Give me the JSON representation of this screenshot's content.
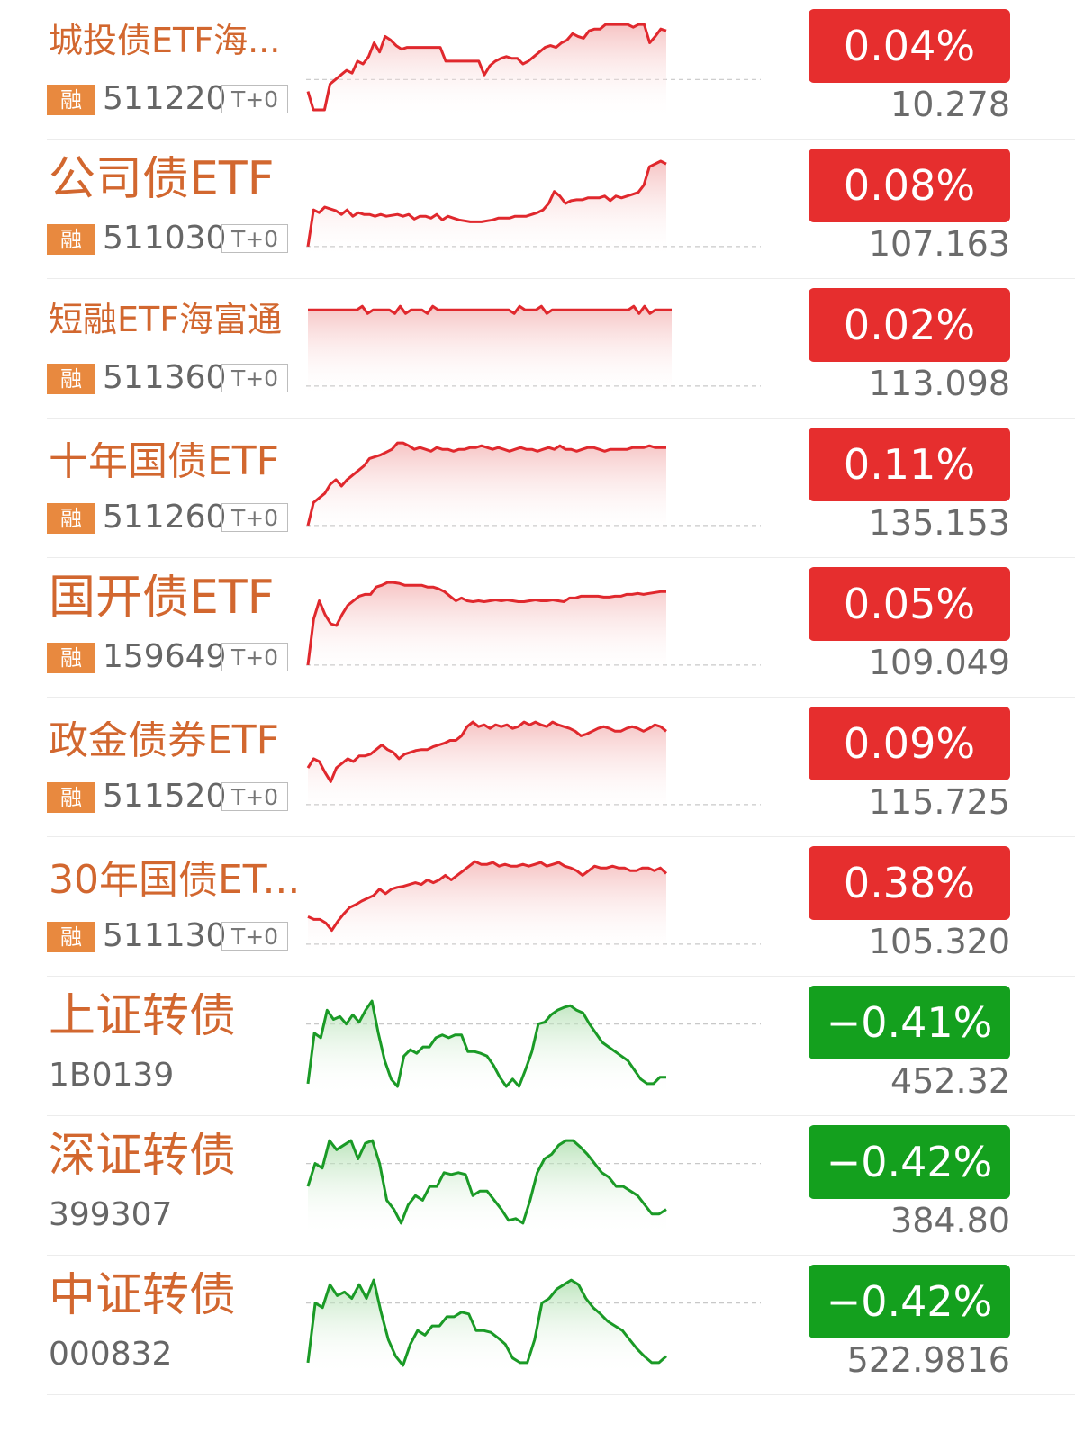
{
  "items": [
    {
      "name": "城投债ETF海...",
      "code": "511220",
      "badge": "融",
      "tplus": "T+0",
      "change": "0.04%",
      "price": "10.278",
      "dir": "up",
      "spark": [
        0.78,
        0.98,
        0.98,
        0.98,
        0.7,
        0.65,
        0.6,
        0.55,
        0.58,
        0.45,
        0.48,
        0.4,
        0.25,
        0.35,
        0.18,
        0.22,
        0.28,
        0.32,
        0.3,
        0.3,
        0.3,
        0.3,
        0.3,
        0.3,
        0.3,
        0.45,
        0.45,
        0.45,
        0.45,
        0.45,
        0.45,
        0.45,
        0.6,
        0.5,
        0.45,
        0.42,
        0.4,
        0.42,
        0.42,
        0.48,
        0.45,
        0.4,
        0.35,
        0.3,
        0.28,
        0.3,
        0.25,
        0.22,
        0.15,
        0.18,
        0.2,
        0.12,
        0.1,
        0.1,
        0.05,
        0.05,
        0.05,
        0.05,
        0.05,
        0.08,
        0.05,
        0.05,
        0.25,
        0.18,
        0.1,
        0.12
      ],
      "ref": 0.65
    },
    {
      "name": "公司债ETF",
      "code": "511030",
      "badge": "融",
      "tplus": "T+0",
      "change": "0.08%",
      "price": "107.163",
      "dir": "up",
      "spark": [
        0.95,
        0.55,
        0.58,
        0.52,
        0.54,
        0.56,
        0.6,
        0.55,
        0.62,
        0.58,
        0.6,
        0.6,
        0.62,
        0.6,
        0.62,
        0.61,
        0.6,
        0.62,
        0.6,
        0.65,
        0.62,
        0.62,
        0.64,
        0.6,
        0.66,
        0.62,
        0.64,
        0.66,
        0.67,
        0.68,
        0.68,
        0.68,
        0.67,
        0.66,
        0.64,
        0.64,
        0.64,
        0.62,
        0.62,
        0.62,
        0.6,
        0.58,
        0.55,
        0.48,
        0.35,
        0.4,
        0.48,
        0.45,
        0.44,
        0.44,
        0.42,
        0.42,
        0.42,
        0.4,
        0.45,
        0.4,
        0.42,
        0.4,
        0.38,
        0.36,
        0.28,
        0.08,
        0.05,
        0.02,
        0.05
      ],
      "ref": 0.95
    },
    {
      "name": "短融ETF海富通",
      "code": "511360",
      "badge": "融",
      "tplus": "T+0",
      "change": "0.02%",
      "price": "113.098",
      "dir": "up",
      "spark": [
        0.12,
        0.12,
        0.12,
        0.12,
        0.12,
        0.12,
        0.12,
        0.12,
        0.12,
        0.12,
        0.08,
        0.16,
        0.12,
        0.12,
        0.12,
        0.12,
        0.16,
        0.08,
        0.16,
        0.12,
        0.12,
        0.12,
        0.16,
        0.08,
        0.12,
        0.12,
        0.12,
        0.12,
        0.12,
        0.12,
        0.12,
        0.12,
        0.12,
        0.12,
        0.12,
        0.12,
        0.12,
        0.12,
        0.16,
        0.08,
        0.12,
        0.12,
        0.12,
        0.08,
        0.16,
        0.12,
        0.12,
        0.12,
        0.12,
        0.12,
        0.12,
        0.12,
        0.12,
        0.12,
        0.12,
        0.12,
        0.12,
        0.12,
        0.12,
        0.12,
        0.08,
        0.16,
        0.08,
        0.16,
        0.12,
        0.12,
        0.12,
        0.12
      ],
      "ref": 0.95
    },
    {
      "name": "十年国债ETF",
      "code": "511260",
      "badge": "融",
      "tplus": "T+0",
      "change": "0.11%",
      "price": "135.153",
      "dir": "up",
      "spark": [
        0.95,
        0.7,
        0.65,
        0.6,
        0.5,
        0.45,
        0.52,
        0.45,
        0.4,
        0.35,
        0.3,
        0.22,
        0.2,
        0.18,
        0.15,
        0.12,
        0.05,
        0.05,
        0.08,
        0.12,
        0.1,
        0.12,
        0.14,
        0.1,
        0.12,
        0.12,
        0.14,
        0.12,
        0.12,
        0.1,
        0.1,
        0.08,
        0.1,
        0.12,
        0.1,
        0.12,
        0.14,
        0.12,
        0.1,
        0.12,
        0.12,
        0.14,
        0.12,
        0.1,
        0.12,
        0.08,
        0.12,
        0.12,
        0.14,
        0.12,
        0.1,
        0.1,
        0.12,
        0.14,
        0.12,
        0.12,
        0.12,
        0.12,
        0.1,
        0.1,
        0.1,
        0.08,
        0.1,
        0.1,
        0.1
      ],
      "ref": 0.95
    },
    {
      "name": "国开债ETF",
      "code": "159649",
      "badge": "融",
      "tplus": "T+0",
      "change": "0.05%",
      "price": "109.049",
      "dir": "up",
      "spark": [
        0.95,
        0.45,
        0.25,
        0.4,
        0.5,
        0.52,
        0.4,
        0.3,
        0.25,
        0.2,
        0.18,
        0.18,
        0.1,
        0.08,
        0.05,
        0.05,
        0.06,
        0.08,
        0.08,
        0.08,
        0.08,
        0.1,
        0.1,
        0.12,
        0.15,
        0.2,
        0.25,
        0.22,
        0.25,
        0.26,
        0.25,
        0.26,
        0.25,
        0.24,
        0.25,
        0.24,
        0.25,
        0.26,
        0.26,
        0.25,
        0.24,
        0.25,
        0.25,
        0.24,
        0.25,
        0.26,
        0.22,
        0.22,
        0.2,
        0.2,
        0.2,
        0.2,
        0.21,
        0.21,
        0.2,
        0.2,
        0.18,
        0.18,
        0.17,
        0.18,
        0.17,
        0.16,
        0.15,
        0.15
      ],
      "ref": 0.95
    },
    {
      "name": "政金债券ETF",
      "code": "511520",
      "badge": "融",
      "tplus": "T+0",
      "change": "0.09%",
      "price": "115.725",
      "dir": "up",
      "spark": [
        0.55,
        0.45,
        0.48,
        0.6,
        0.7,
        0.55,
        0.5,
        0.45,
        0.48,
        0.42,
        0.42,
        0.4,
        0.35,
        0.3,
        0.35,
        0.38,
        0.45,
        0.4,
        0.38,
        0.36,
        0.35,
        0.35,
        0.32,
        0.3,
        0.28,
        0.25,
        0.25,
        0.2,
        0.1,
        0.05,
        0.1,
        0.08,
        0.12,
        0.08,
        0.1,
        0.08,
        0.12,
        0.1,
        0.05,
        0.08,
        0.05,
        0.08,
        0.1,
        0.05,
        0.08,
        0.1,
        0.12,
        0.15,
        0.2,
        0.18,
        0.15,
        0.12,
        0.1,
        0.12,
        0.15,
        0.15,
        0.12,
        0.1,
        0.12,
        0.15,
        0.12,
        0.08,
        0.1,
        0.15
      ],
      "ref": 0.95
    },
    {
      "name": "30年国债ET...",
      "code": "511130",
      "badge": "融",
      "tplus": "T+0",
      "change": "0.38%",
      "price": "105.320",
      "dir": "up",
      "spark": [
        0.65,
        0.68,
        0.68,
        0.72,
        0.8,
        0.7,
        0.62,
        0.55,
        0.52,
        0.48,
        0.45,
        0.42,
        0.35,
        0.4,
        0.35,
        0.33,
        0.32,
        0.3,
        0.28,
        0.3,
        0.25,
        0.28,
        0.25,
        0.2,
        0.25,
        0.2,
        0.15,
        0.1,
        0.05,
        0.08,
        0.08,
        0.06,
        0.1,
        0.08,
        0.1,
        0.1,
        0.08,
        0.1,
        0.08,
        0.06,
        0.1,
        0.08,
        0.06,
        0.1,
        0.12,
        0.15,
        0.2,
        0.15,
        0.1,
        0.12,
        0.12,
        0.1,
        0.12,
        0.12,
        0.15,
        0.15,
        0.12,
        0.12,
        0.15,
        0.12,
        0.18
      ],
      "ref": 0.95
    },
    {
      "name": "上证转债",
      "code": "1B0139",
      "badge": "",
      "tplus": "",
      "change": "-0.41%",
      "price": "452.32",
      "dir": "down",
      "spark": [
        0.95,
        0.4,
        0.45,
        0.15,
        0.25,
        0.22,
        0.3,
        0.2,
        0.28,
        0.15,
        0.05,
        0.4,
        0.7,
        0.9,
        0.98,
        0.65,
        0.58,
        0.62,
        0.55,
        0.55,
        0.45,
        0.42,
        0.45,
        0.42,
        0.42,
        0.6,
        0.6,
        0.62,
        0.65,
        0.75,
        0.88,
        0.98,
        0.9,
        0.98,
        0.8,
        0.6,
        0.3,
        0.28,
        0.2,
        0.15,
        0.12,
        0.1,
        0.15,
        0.18,
        0.3,
        0.4,
        0.5,
        0.55,
        0.6,
        0.65,
        0.7,
        0.8,
        0.9,
        0.95,
        0.95,
        0.88,
        0.88
      ],
      "ref": 0.3
    },
    {
      "name": "深证转债",
      "code": "399307",
      "badge": "",
      "tplus": "",
      "change": "-0.42%",
      "price": "384.80",
      "dir": "down",
      "spark": [
        0.55,
        0.3,
        0.35,
        0.05,
        0.15,
        0.1,
        0.05,
        0.25,
        0.08,
        0.05,
        0.3,
        0.7,
        0.8,
        0.95,
        0.75,
        0.65,
        0.7,
        0.55,
        0.55,
        0.4,
        0.42,
        0.4,
        0.42,
        0.65,
        0.6,
        0.6,
        0.7,
        0.8,
        0.92,
        0.9,
        0.95,
        0.7,
        0.4,
        0.25,
        0.2,
        0.1,
        0.05,
        0.05,
        0.12,
        0.2,
        0.3,
        0.4,
        0.45,
        0.55,
        0.55,
        0.6,
        0.65,
        0.75,
        0.85,
        0.85,
        0.8
      ],
      "ref": 0.3
    },
    {
      "name": "中证转债",
      "code": "000832",
      "badge": "",
      "tplus": "",
      "change": "-0.42%",
      "price": "522.9816",
      "dir": "down",
      "spark": [
        0.95,
        0.3,
        0.35,
        0.1,
        0.22,
        0.18,
        0.25,
        0.1,
        0.25,
        0.05,
        0.4,
        0.7,
        0.88,
        0.98,
        0.75,
        0.6,
        0.65,
        0.55,
        0.55,
        0.45,
        0.45,
        0.4,
        0.42,
        0.6,
        0.6,
        0.62,
        0.68,
        0.75,
        0.9,
        0.95,
        0.95,
        0.7,
        0.3,
        0.25,
        0.15,
        0.1,
        0.05,
        0.1,
        0.25,
        0.35,
        0.42,
        0.5,
        0.55,
        0.6,
        0.7,
        0.8,
        0.88,
        0.95,
        0.95,
        0.88
      ],
      "ref": 0.3
    }
  ]
}
